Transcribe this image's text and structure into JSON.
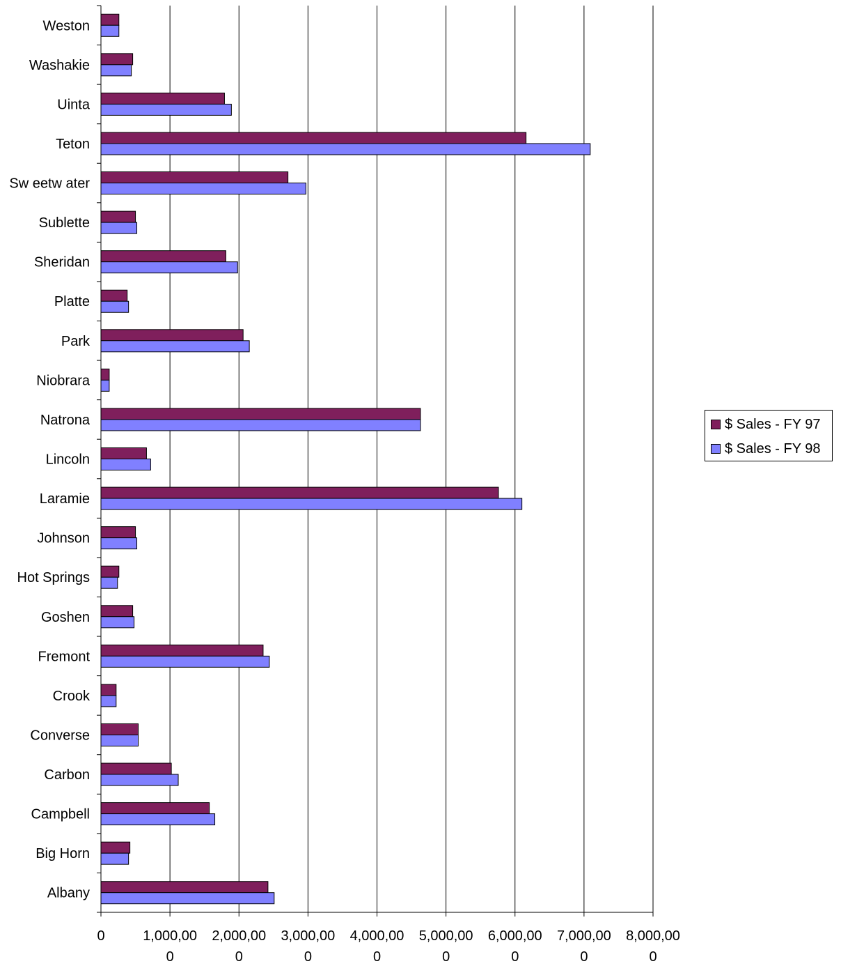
{
  "chart_data": {
    "type": "bar",
    "orientation": "horizontal",
    "categories": [
      "Albany",
      "Big Horn",
      "Campbell",
      "Carbon",
      "Converse",
      "Crook",
      "Fremont",
      "Goshen",
      "Hot Springs",
      "Johnson",
      "Laramie",
      "Lincoln",
      "Natrona",
      "Niobrara",
      "Park",
      "Platte",
      "Sheridan",
      "Sublette",
      "Sw eetw ater",
      "Teton",
      "Uinta",
      "Washakie",
      "Weston"
    ],
    "series": [
      {
        "name": "$ Sales - FY 97",
        "color": "#7f1f5c",
        "values": [
          2420000,
          420000,
          1570000,
          1020000,
          540000,
          220000,
          2350000,
          460000,
          260000,
          500000,
          5760000,
          660000,
          4630000,
          120000,
          2060000,
          380000,
          1810000,
          500000,
          2710000,
          6160000,
          1790000,
          460000,
          260000
        ]
      },
      {
        "name": "$ Sales - FY 98",
        "color": "#8080ff",
        "values": [
          2510000,
          400000,
          1650000,
          1120000,
          540000,
          220000,
          2440000,
          480000,
          240000,
          520000,
          6100000,
          720000,
          4630000,
          120000,
          2150000,
          400000,
          1980000,
          520000,
          2970000,
          7090000,
          1890000,
          440000,
          260000
        ]
      }
    ],
    "xlim": [
      0,
      8000000
    ],
    "x_ticks": [
      {
        "line1": "0",
        "line2": ""
      },
      {
        "line1": "1,000,00",
        "line2": "0"
      },
      {
        "line1": "2,000,00",
        "line2": "0"
      },
      {
        "line1": "3,000,00",
        "line2": "0"
      },
      {
        "line1": "4,000,00",
        "line2": "0"
      },
      {
        "line1": "5,000,00",
        "line2": "0"
      },
      {
        "line1": "6,000,00",
        "line2": "0"
      },
      {
        "line1": "7,000,00",
        "line2": "0"
      },
      {
        "line1": "8,000,00",
        "line2": "0"
      }
    ],
    "grid": true,
    "legend_position": "right"
  }
}
